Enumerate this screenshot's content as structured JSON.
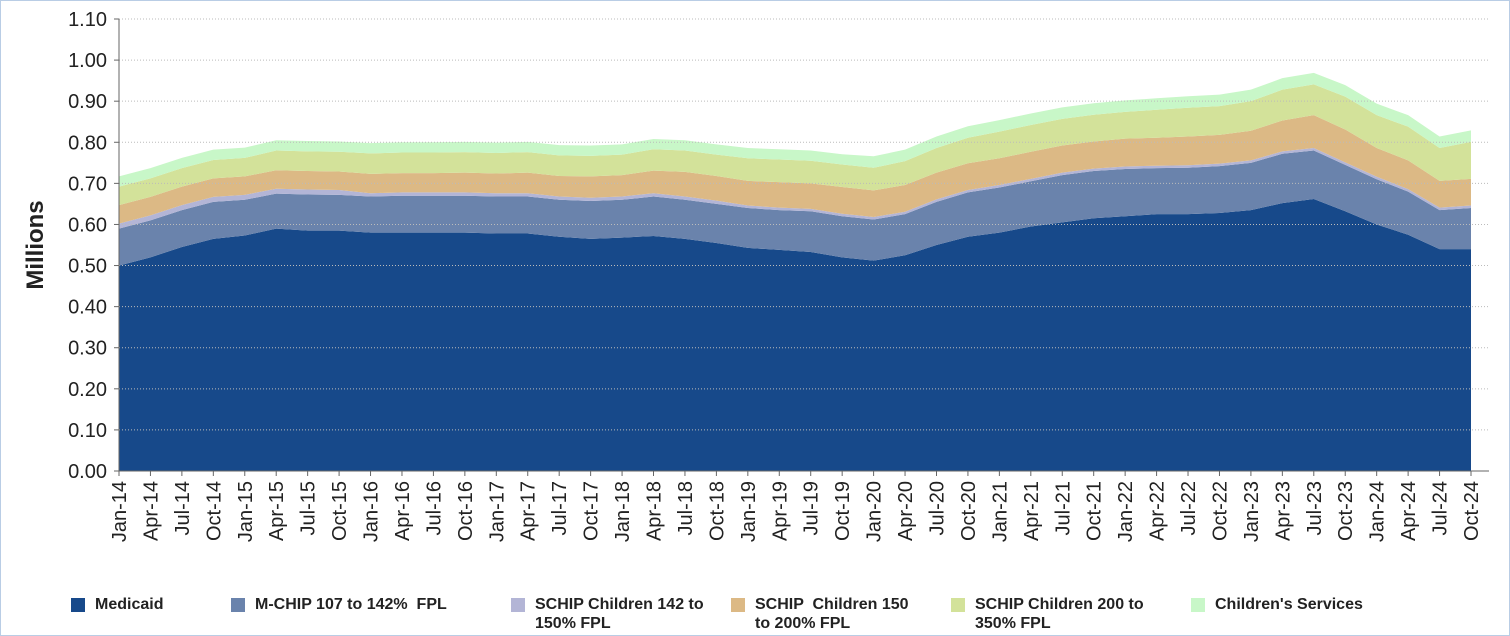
{
  "chart_data": {
    "type": "stacked-area",
    "y_label": "Millions",
    "categories": [
      "Jan-14",
      "Apr-14",
      "Jul-14",
      "Oct-14",
      "Jan-15",
      "Apr-15",
      "Jul-15",
      "Oct-15",
      "Jan-16",
      "Apr-16",
      "Jul-16",
      "Oct-16",
      "Jan-17",
      "Apr-17",
      "Jul-17",
      "Oct-17",
      "Jan-18",
      "Apr-18",
      "Jul-18",
      "Oct-18",
      "Jan-19",
      "Apr-19",
      "Jul-19",
      "Oct-19",
      "Jan-20",
      "Apr-20",
      "Jul-20",
      "Oct-20",
      "Jan-21",
      "Apr-21",
      "Jul-21",
      "Oct-21",
      "Jan-22",
      "Apr-22",
      "Jul-22",
      "Oct-22",
      "Jan-23",
      "Apr-23",
      "Jul-23",
      "Oct-23",
      "Jan-24",
      "Apr-24",
      "Jul-24",
      "Oct-24"
    ],
    "series": [
      {
        "name": "Medicaid",
        "color": "#17498a",
        "values": [
          0.5,
          0.52,
          0.545,
          0.565,
          0.573,
          0.59,
          0.585,
          0.585,
          0.58,
          0.58,
          0.58,
          0.58,
          0.578,
          0.578,
          0.57,
          0.565,
          0.568,
          0.572,
          0.565,
          0.555,
          0.543,
          0.538,
          0.533,
          0.52,
          0.512,
          0.525,
          0.55,
          0.57,
          0.58,
          0.595,
          0.605,
          0.615,
          0.62,
          0.625,
          0.625,
          0.628,
          0.635,
          0.652,
          0.662,
          0.632,
          0.6,
          0.575,
          0.54,
          0.54
        ]
      },
      {
        "name": "M-CHIP 107 to 142%  FPL",
        "color": "#6a83ac",
        "values": [
          0.09,
          0.09,
          0.09,
          0.09,
          0.087,
          0.085,
          0.088,
          0.087,
          0.088,
          0.09,
          0.09,
          0.09,
          0.09,
          0.09,
          0.09,
          0.092,
          0.092,
          0.096,
          0.095,
          0.095,
          0.097,
          0.097,
          0.099,
          0.1,
          0.1,
          0.1,
          0.105,
          0.108,
          0.11,
          0.11,
          0.115,
          0.115,
          0.115,
          0.112,
          0.113,
          0.114,
          0.115,
          0.12,
          0.118,
          0.113,
          0.11,
          0.105,
          0.095,
          0.1
        ]
      },
      {
        "name": "SCHIP Children 142 to 150% FPL",
        "color": "#b3b5d6",
        "values": [
          0.012,
          0.012,
          0.012,
          0.012,
          0.012,
          0.012,
          0.012,
          0.012,
          0.008,
          0.008,
          0.008,
          0.008,
          0.008,
          0.008,
          0.008,
          0.008,
          0.008,
          0.008,
          0.008,
          0.008,
          0.006,
          0.006,
          0.006,
          0.006,
          0.006,
          0.006,
          0.006,
          0.006,
          0.006,
          0.006,
          0.006,
          0.006,
          0.006,
          0.006,
          0.006,
          0.006,
          0.006,
          0.006,
          0.006,
          0.006,
          0.006,
          0.006,
          0.006,
          0.006
        ]
      },
      {
        "name": "SCHIP  Children 150 to 200% FPL",
        "color": "#dcb985",
        "values": [
          0.045,
          0.045,
          0.045,
          0.045,
          0.045,
          0.045,
          0.045,
          0.045,
          0.047,
          0.047,
          0.047,
          0.048,
          0.048,
          0.05,
          0.05,
          0.052,
          0.052,
          0.055,
          0.06,
          0.06,
          0.06,
          0.062,
          0.062,
          0.065,
          0.065,
          0.065,
          0.065,
          0.065,
          0.065,
          0.066,
          0.066,
          0.066,
          0.068,
          0.068,
          0.07,
          0.07,
          0.072,
          0.075,
          0.08,
          0.08,
          0.07,
          0.07,
          0.065,
          0.065
        ]
      },
      {
        "name": "SCHIP Children 200 to 350% FPL",
        "color": "#d3e29a",
        "values": [
          0.045,
          0.045,
          0.045,
          0.045,
          0.045,
          0.048,
          0.048,
          0.048,
          0.05,
          0.05,
          0.05,
          0.05,
          0.05,
          0.05,
          0.05,
          0.05,
          0.05,
          0.052,
          0.052,
          0.052,
          0.055,
          0.055,
          0.055,
          0.055,
          0.055,
          0.058,
          0.06,
          0.062,
          0.065,
          0.065,
          0.065,
          0.065,
          0.065,
          0.068,
          0.07,
          0.07,
          0.072,
          0.075,
          0.075,
          0.08,
          0.08,
          0.082,
          0.08,
          0.09
        ]
      },
      {
        "name": "Children's Services",
        "color": "#c8f7c8",
        "values": [
          0.025,
          0.025,
          0.025,
          0.025,
          0.025,
          0.025,
          0.025,
          0.025,
          0.025,
          0.025,
          0.025,
          0.025,
          0.025,
          0.025,
          0.025,
          0.025,
          0.025,
          0.025,
          0.025,
          0.025,
          0.025,
          0.025,
          0.025,
          0.025,
          0.028,
          0.028,
          0.028,
          0.028,
          0.028,
          0.028,
          0.028,
          0.028,
          0.028,
          0.028,
          0.028,
          0.028,
          0.028,
          0.028,
          0.028,
          0.028,
          0.028,
          0.028,
          0.028,
          0.028
        ]
      }
    ],
    "ylim": [
      0,
      1.1
    ],
    "yticks": [
      {
        "value": 0,
        "label": "0.00"
      },
      {
        "value": 0.1,
        "label": "0.10"
      },
      {
        "value": 0.2,
        "label": "0.20"
      },
      {
        "value": 0.3,
        "label": "0.30"
      },
      {
        "value": 0.4,
        "label": "0.40"
      },
      {
        "value": 0.5,
        "label": "0.50"
      },
      {
        "value": 0.6,
        "label": "0.60"
      },
      {
        "value": 0.7,
        "label": "0.70"
      },
      {
        "value": 0.8,
        "label": "0.80"
      },
      {
        "value": 0.9,
        "label": "0.90"
      },
      {
        "value": 1,
        "label": "1.00"
      },
      {
        "value": 1.1,
        "label": "1.10"
      }
    ],
    "grid": true
  }
}
